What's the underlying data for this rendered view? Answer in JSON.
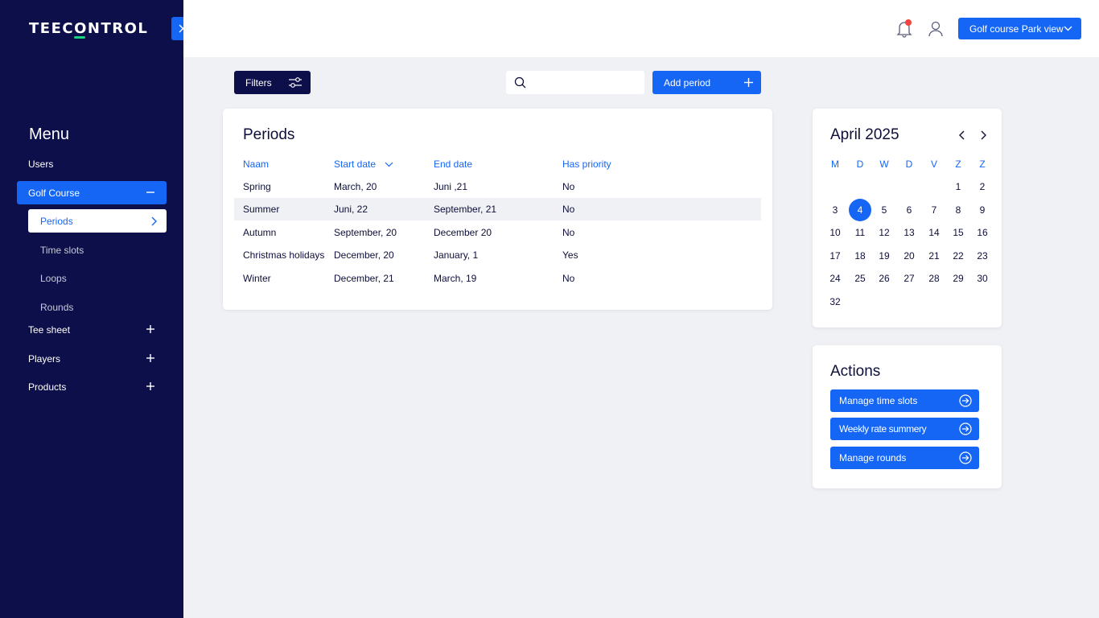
{
  "brand": {
    "logo_text": "TEECONTROL",
    "accent_color": "#1566f5",
    "sidebar_color": "#0d0f4a",
    "logo_accent": "#17d37b"
  },
  "sidebar": {
    "menu_title": "Menu",
    "items": [
      {
        "label": "Users"
      },
      {
        "label": "Golf Course",
        "expanded": true,
        "active": true
      },
      {
        "label": "Tee sheet"
      },
      {
        "label": "Players"
      },
      {
        "label": "Products"
      }
    ],
    "golf_course_sub": [
      {
        "label": "Periods",
        "selected": true
      },
      {
        "label": "Time slots"
      },
      {
        "label": "Loops"
      },
      {
        "label": "Rounds"
      }
    ]
  },
  "header": {
    "course_select": "Golf course Park view",
    "notification_dot_color": "#f2453d"
  },
  "toolbar": {
    "filters_label": "Filters",
    "search_value": "",
    "add_label": "Add period"
  },
  "periods": {
    "title": "Periods",
    "columns": [
      "Naam",
      "Start date",
      "End date",
      "Has priority"
    ],
    "rows": [
      {
        "name": "Spring",
        "start": "March, 20",
        "end": "Juni ,21",
        "priority": "No"
      },
      {
        "name": "Summer",
        "start": "Juni, 22",
        "end": "September, 21",
        "priority": "No"
      },
      {
        "name": "Autumn",
        "start": "September, 20",
        "end": "December 20",
        "priority": "No"
      },
      {
        "name": "Christmas holidays",
        "start": "December, 20",
        "end": "January, 1",
        "priority": "Yes"
      },
      {
        "name": "Winter",
        "start": "December, 21",
        "end": "March, 19",
        "priority": "No"
      }
    ]
  },
  "calendar": {
    "month_label": "April 2025",
    "weekdays": [
      "M",
      "D",
      "W",
      "D",
      "V",
      "Z",
      "Z"
    ],
    "weeks": [
      [
        "",
        "",
        "",
        "",
        "",
        "1",
        "2"
      ],
      [
        "3",
        "4",
        "5",
        "6",
        "7",
        "8",
        "9"
      ],
      [
        "10",
        "11",
        "12",
        "13",
        "14",
        "15",
        "16"
      ],
      [
        "17",
        "18",
        "19",
        "20",
        "21",
        "22",
        "23"
      ],
      [
        "24",
        "25",
        "26",
        "27",
        "28",
        "29",
        "30"
      ],
      [
        "32",
        "",
        "",
        "",
        "",
        "",
        ""
      ]
    ],
    "selected_day": "4"
  },
  "actions": {
    "title": "Actions",
    "buttons": [
      "Manage time slots",
      "Weekly rate summery",
      "Manage rounds"
    ]
  }
}
